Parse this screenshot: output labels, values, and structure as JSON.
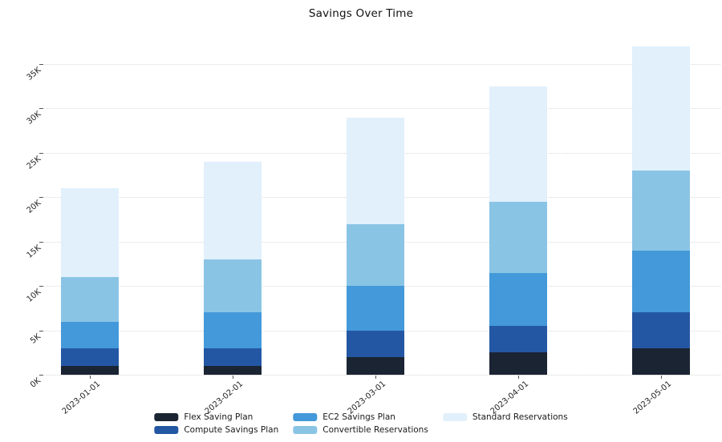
{
  "chart_data": {
    "type": "bar",
    "stacked": true,
    "title": "Savings Over Time",
    "xlabel": "",
    "ylabel": "",
    "categories": [
      "2023-01-01",
      "2023-02-01",
      "2023-03-01",
      "2023-04-01",
      "2023-05-01"
    ],
    "series": [
      {
        "name": "Flex Saving Plan",
        "color": "#1b2433",
        "values": [
          1000,
          1000,
          2000,
          2500,
          3000
        ]
      },
      {
        "name": "Compute Savings Plan",
        "color": "#2457a3",
        "values": [
          2000,
          2000,
          3000,
          3000,
          4000
        ]
      },
      {
        "name": "EC2 Savings Plan",
        "color": "#4399d9",
        "values": [
          3000,
          4000,
          5000,
          6000,
          7000
        ]
      },
      {
        "name": "Convertible Reservations",
        "color": "#8ac4e5",
        "values": [
          5000,
          6000,
          7000,
          8000,
          9000
        ]
      },
      {
        "name": "Standard Reservations",
        "color": "#e1f0fb",
        "values": [
          10000,
          11000,
          12000,
          13000,
          14000
        ]
      }
    ],
    "totals": [
      21000,
      24000,
      29000,
      32500,
      37000
    ],
    "ylim": [
      0,
      38000
    ],
    "ytick_values": [
      0,
      5000,
      10000,
      15000,
      20000,
      25000,
      30000,
      35000
    ],
    "ytick_labels": [
      "0K",
      "5K",
      "10K",
      "15K",
      "20K",
      "25K",
      "30K",
      "35K"
    ],
    "grid": "horizontal-dotted",
    "gridline_color": "#d8d8d8",
    "tick_label_rotation_deg": 40,
    "legend_position": "bottom"
  },
  "legend": {
    "columns": [
      [
        "Flex Saving Plan",
        "Compute Savings Plan"
      ],
      [
        "EC2 Savings Plan",
        "Convertible Reservations"
      ],
      [
        "Standard Reservations"
      ]
    ]
  }
}
